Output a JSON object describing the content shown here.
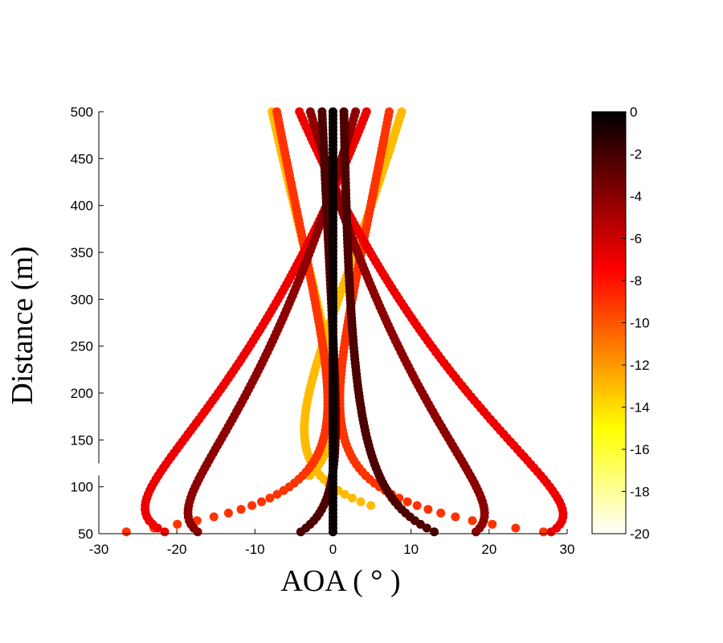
{
  "chart_data": {
    "type": "scatter",
    "xlabel": "AOA ( ° )",
    "ylabel": "Distance (m)",
    "xlim": [
      -30,
      30
    ],
    "ylim": [
      50,
      500
    ],
    "x_ticks": [
      "-30",
      "-20",
      "-10",
      "0",
      "10",
      "20",
      "30"
    ],
    "y_ticks": [
      "50",
      "100",
      "150",
      "200",
      "250",
      "300",
      "350",
      "400",
      "450",
      "500"
    ],
    "y_axis_break": "between 100 and 150",
    "grid": false,
    "colorbar": {
      "colormap": "hot",
      "range": [
        -20,
        0
      ],
      "ticks": [
        "0",
        "-2",
        "-4",
        "-6",
        "-8",
        "-10",
        "-12",
        "-14",
        "-16",
        "-18",
        "-20"
      ]
    },
    "series": [
      {
        "color_value": 0,
        "x_at_500": 0.0,
        "x_at_50": 0.0,
        "y_min": 50
      },
      {
        "color_value": -2,
        "x_at_500": 1.4,
        "x_at_50": 13.5,
        "y_min": 50
      },
      {
        "color_value": -2,
        "x_at_500": -1.4,
        "x_at_50": -4.5,
        "y_min": 50
      },
      {
        "color_value": -4,
        "x_at_500": 2.9,
        "x_at_50": -17.0,
        "y_min": 50
      },
      {
        "color_value": -4,
        "x_at_500": -2.9,
        "x_at_50": 18.0,
        "y_min": 50
      },
      {
        "color_value": -7,
        "x_at_500": 4.3,
        "x_at_50": -21.0,
        "y_min": 50
      },
      {
        "color_value": -7,
        "x_at_500": -4.3,
        "x_at_50": 27.5,
        "y_min": 50
      },
      {
        "color_value": -9,
        "x_at_500": 7.2,
        "x_at_50": 29.0,
        "y_min": 50
      },
      {
        "color_value": -9,
        "x_at_500": -7.2,
        "x_at_50": -28.5,
        "y_min": 50
      },
      {
        "color_value": -13,
        "x_at_500": -7.8,
        "x_at_50": -29.0,
        "y_min": 110
      },
      {
        "color_value": -13,
        "x_at_500": 8.8,
        "x_at_50": 25.0,
        "y_min": 80
      }
    ]
  }
}
